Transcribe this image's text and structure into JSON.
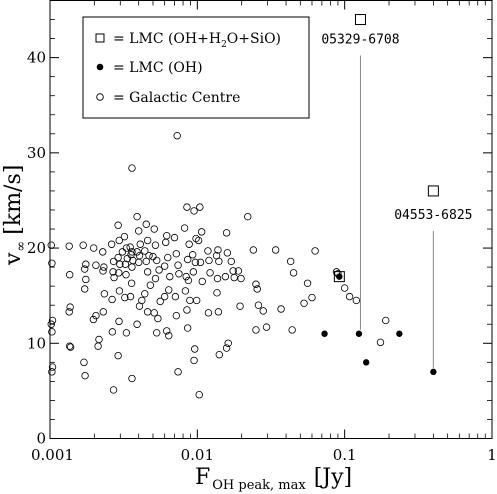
{
  "chart_data": {
    "type": "scatter",
    "x_scale": "log",
    "xlim": [
      0.001,
      1
    ],
    "ylim": [
      0,
      46
    ],
    "xlabel": "F",
    "xlabel_sub": "OH peak, max",
    "xlabel_unit": "[Jy]",
    "ylabel": "v",
    "ylabel_sub": "∞",
    "ylabel_unit": "[km/s]",
    "x_ticks": [
      {
        "value": 0.001,
        "label": "0.001"
      },
      {
        "value": 0.01,
        "label": "0.01"
      },
      {
        "value": 0.1,
        "label": "0.1"
      },
      {
        "value": 1,
        "label": "1"
      }
    ],
    "y_ticks": [
      {
        "value": 0,
        "label": "0"
      },
      {
        "value": 10,
        "label": "10"
      },
      {
        "value": 20,
        "label": "20"
      },
      {
        "value": 30,
        "label": "30"
      },
      {
        "value": 40,
        "label": "40"
      }
    ],
    "grid": false,
    "legend_position": "top-left",
    "legend": [
      {
        "marker": "open-square",
        "label": "= LMC (OH+H",
        "sub": "2",
        "label2": "O+SiO)"
      },
      {
        "marker": "filled-circle",
        "label": "= LMC (OH)",
        "sub": "",
        "label2": ""
      },
      {
        "marker": "open-circle",
        "label": "= Galactic Centre",
        "sub": "",
        "label2": ""
      }
    ],
    "annotations": [
      {
        "text": "05329-6708",
        "x": 0.128,
        "y": 44,
        "x_line_bottom": 0.128,
        "y_line_bottom": 11
      },
      {
        "text": "04553-6825",
        "x": 0.4,
        "y": 26,
        "x_line_bottom": 0.4,
        "y_line_bottom": 7
      }
    ],
    "series": [
      {
        "name": "LMC (OH+H2O+SiO)",
        "marker": "open-square",
        "points": [
          [
            0.128,
            44
          ],
          [
            0.4,
            26
          ],
          [
            0.092,
            17
          ]
        ]
      },
      {
        "name": "LMC (OH)",
        "marker": "filled-circle",
        "points": [
          [
            0.073,
            11
          ],
          [
            0.092,
            17
          ],
          [
            0.125,
            11
          ],
          [
            0.14,
            8
          ],
          [
            0.235,
            11
          ],
          [
            0.4,
            7
          ]
        ]
      },
      {
        "name": "Galactic Centre",
        "marker": "open-circle",
        "points": [
          [
            0.00102,
            20.3
          ],
          [
            0.00103,
            18.4
          ],
          [
            0.00104,
            12.4
          ],
          [
            0.00102,
            12
          ],
          [
            0.00103,
            11.2
          ],
          [
            0.00104,
            7.5
          ],
          [
            0.00103,
            7
          ],
          [
            0.00135,
            20.2
          ],
          [
            0.00136,
            17.2
          ],
          [
            0.00137,
            13.8
          ],
          [
            0.00135,
            13.3
          ],
          [
            0.00136,
            9.7
          ],
          [
            0.00138,
            9.6
          ],
          [
            0.00168,
            20.3
          ],
          [
            0.00175,
            18.3
          ],
          [
            0.00172,
            17.8
          ],
          [
            0.00175,
            16.7
          ],
          [
            0.00172,
            15.7
          ],
          [
            0.0017,
            8
          ],
          [
            0.00173,
            6.6
          ],
          [
            0.00198,
            20
          ],
          [
            0.00205,
            18.2
          ],
          [
            0.00205,
            12.9
          ],
          [
            0.00197,
            12.5
          ],
          [
            0.00215,
            10.4
          ],
          [
            0.00212,
            9.7
          ],
          [
            0.00228,
            19.6
          ],
          [
            0.00232,
            18
          ],
          [
            0.00229,
            17.6
          ],
          [
            0.00234,
            15.2
          ],
          [
            0.0023,
            13.3
          ],
          [
            0.00262,
            20.4
          ],
          [
            0.0027,
            18.6
          ],
          [
            0.00268,
            17.5
          ],
          [
            0.00272,
            16.9
          ],
          [
            0.00264,
            14.6
          ],
          [
            0.00265,
            11.2
          ],
          [
            0.0027,
            5.1
          ],
          [
            0.0029,
            22.4
          ],
          [
            0.00295,
            20.8
          ],
          [
            0.0029,
            19
          ],
          [
            0.00298,
            18.3
          ],
          [
            0.00293,
            17.4
          ],
          [
            0.00296,
            15.5
          ],
          [
            0.00294,
            12.3
          ],
          [
            0.0029,
            8.7
          ],
          [
            0.0032,
            21.2
          ],
          [
            0.0033,
            20
          ],
          [
            0.0031,
            19.6
          ],
          [
            0.00335,
            18.9
          ],
          [
            0.00325,
            18.3
          ],
          [
            0.00328,
            17.2
          ],
          [
            0.00322,
            14.8
          ],
          [
            0.0033,
            11.1
          ],
          [
            0.0036,
            28.4
          ],
          [
            0.0035,
            20.1
          ],
          [
            0.0036,
            19.6
          ],
          [
            0.00355,
            19.3
          ],
          [
            0.00365,
            18.7
          ],
          [
            0.0036,
            18
          ],
          [
            0.00358,
            16.3
          ],
          [
            0.00352,
            14.9
          ],
          [
            0.0036,
            6.3
          ],
          [
            0.0039,
            23.3
          ],
          [
            0.004,
            21.8
          ],
          [
            0.0041,
            20.4
          ],
          [
            0.0039,
            19.6
          ],
          [
            0.00405,
            19.2
          ],
          [
            0.004,
            18.5
          ],
          [
            0.0042,
            14.5
          ],
          [
            0.00405,
            13.9
          ],
          [
            0.0039,
            12
          ],
          [
            0.0045,
            22.5
          ],
          [
            0.0046,
            20.8
          ],
          [
            0.0044,
            19.7
          ],
          [
            0.0047,
            19.2
          ],
          [
            0.0045,
            18.6
          ],
          [
            0.0046,
            17.5
          ],
          [
            0.0048,
            16.1
          ],
          [
            0.0044,
            15.2
          ],
          [
            0.0046,
            13.3
          ],
          [
            0.0051,
            22
          ],
          [
            0.0052,
            20.3
          ],
          [
            0.005,
            19.1
          ],
          [
            0.0053,
            18.7
          ],
          [
            0.0055,
            17.7
          ],
          [
            0.0052,
            16.8
          ],
          [
            0.0056,
            14.4
          ],
          [
            0.0051,
            13.2
          ],
          [
            0.0054,
            12.6
          ],
          [
            0.0053,
            11.1
          ],
          [
            0.0062,
            21.3
          ],
          [
            0.0061,
            20.6
          ],
          [
            0.0063,
            19
          ],
          [
            0.006,
            18.1
          ],
          [
            0.0065,
            17
          ],
          [
            0.0064,
            15.6
          ],
          [
            0.006,
            14.9
          ],
          [
            0.0062,
            11.3
          ],
          [
            0.0064,
            10.8
          ],
          [
            0.0073,
            31.8
          ],
          [
            0.007,
            21.1
          ],
          [
            0.0072,
            19.4
          ],
          [
            0.0074,
            18.2
          ],
          [
            0.0075,
            17.3
          ],
          [
            0.0071,
            14.9
          ],
          [
            0.0072,
            12.9
          ],
          [
            0.0074,
            7
          ],
          [
            0.0085,
            24.3
          ],
          [
            0.0082,
            22.1
          ],
          [
            0.0088,
            20.4
          ],
          [
            0.0086,
            18.8
          ],
          [
            0.0084,
            17
          ],
          [
            0.0087,
            16.6
          ],
          [
            0.0083,
            15.5
          ],
          [
            0.0089,
            14.5
          ],
          [
            0.0085,
            13.5
          ],
          [
            0.0086,
            11.6
          ],
          [
            0.0095,
            23.9
          ],
          [
            0.0098,
            21
          ],
          [
            0.0093,
            19.3
          ],
          [
            0.0097,
            18.5
          ],
          [
            0.0094,
            17.5
          ],
          [
            0.0099,
            14.5
          ],
          [
            0.0096,
            9.4
          ],
          [
            0.0095,
            8.2
          ],
          [
            0.0104,
            24.3
          ],
          [
            0.0107,
            21.7
          ],
          [
            0.0102,
            20.8
          ],
          [
            0.0105,
            18.5
          ],
          [
            0.0108,
            16.5
          ],
          [
            0.0103,
            4.6
          ],
          [
            0.0118,
            19.7
          ],
          [
            0.012,
            18.7
          ],
          [
            0.0122,
            17.4
          ],
          [
            0.0119,
            13.2
          ],
          [
            0.0138,
            19.8
          ],
          [
            0.0135,
            19.2
          ],
          [
            0.014,
            18.6
          ],
          [
            0.0137,
            16.8
          ],
          [
            0.0136,
            15.3
          ],
          [
            0.0139,
            13.3
          ],
          [
            0.0141,
            8.8
          ],
          [
            0.0158,
            21.6
          ],
          [
            0.016,
            19.5
          ],
          [
            0.0155,
            17
          ],
          [
            0.0162,
            10
          ],
          [
            0.0158,
            9.5
          ],
          [
            0.017,
            18.6
          ],
          [
            0.0175,
            17.6
          ],
          [
            0.0178,
            16.9
          ],
          [
            0.019,
            17.6
          ],
          [
            0.0198,
            16.8
          ],
          [
            0.0195,
            13.9
          ],
          [
            0.022,
            23.3
          ],
          [
            0.024,
            19.8
          ],
          [
            0.025,
            16.2
          ],
          [
            0.0255,
            15.7
          ],
          [
            0.026,
            14
          ],
          [
            0.025,
            11.4
          ],
          [
            0.028,
            13.4
          ],
          [
            0.0295,
            11.7
          ],
          [
            0.034,
            19.8
          ],
          [
            0.037,
            13.6
          ],
          [
            0.043,
            18.6
          ],
          [
            0.045,
            17.4
          ],
          [
            0.044,
            11.4
          ],
          [
            0.053,
            14.2
          ],
          [
            0.056,
            16.3
          ],
          [
            0.063,
            19.7
          ],
          [
            0.06,
            14.8
          ],
          [
            0.088,
            17.5
          ],
          [
            0.09,
            17.3
          ],
          [
            0.1,
            15.8
          ],
          [
            0.108,
            14.9
          ],
          [
            0.12,
            14.5
          ],
          [
            0.175,
            10.1
          ],
          [
            0.19,
            12.4
          ]
        ]
      }
    ]
  }
}
